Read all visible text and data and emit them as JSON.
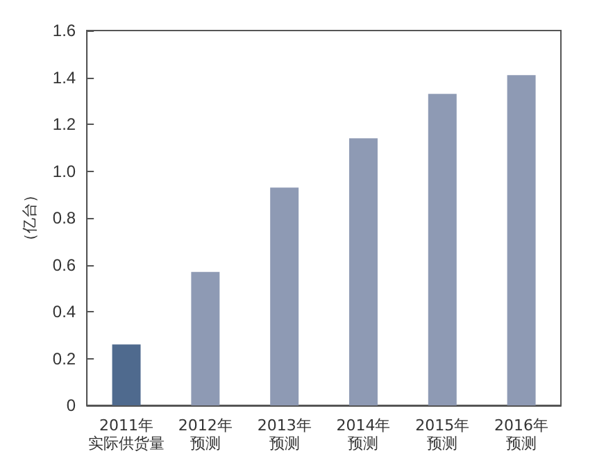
{
  "chart_data": {
    "type": "bar",
    "ylabel": "（亿台）",
    "categories": [
      "2011年实际供货量",
      "2012年预测",
      "2013年预测",
      "2014年预测",
      "2015年预测",
      "2016年预测"
    ],
    "values": [
      0.26,
      0.57,
      0.93,
      1.14,
      1.33,
      1.41
    ],
    "colors": [
      "#4f6a8e",
      "#8e9ab4",
      "#8e9ab4",
      "#8e9ab4",
      "#8e9ab4",
      "#8e9ab4"
    ],
    "ylim": [
      0,
      1.6
    ],
    "yticks": [
      0,
      0.2,
      0.4,
      0.6,
      0.8,
      {
        "value": 1,
        "label": "1.0"
      },
      1.2,
      1.4,
      1.6
    ],
    "grid": false
  }
}
